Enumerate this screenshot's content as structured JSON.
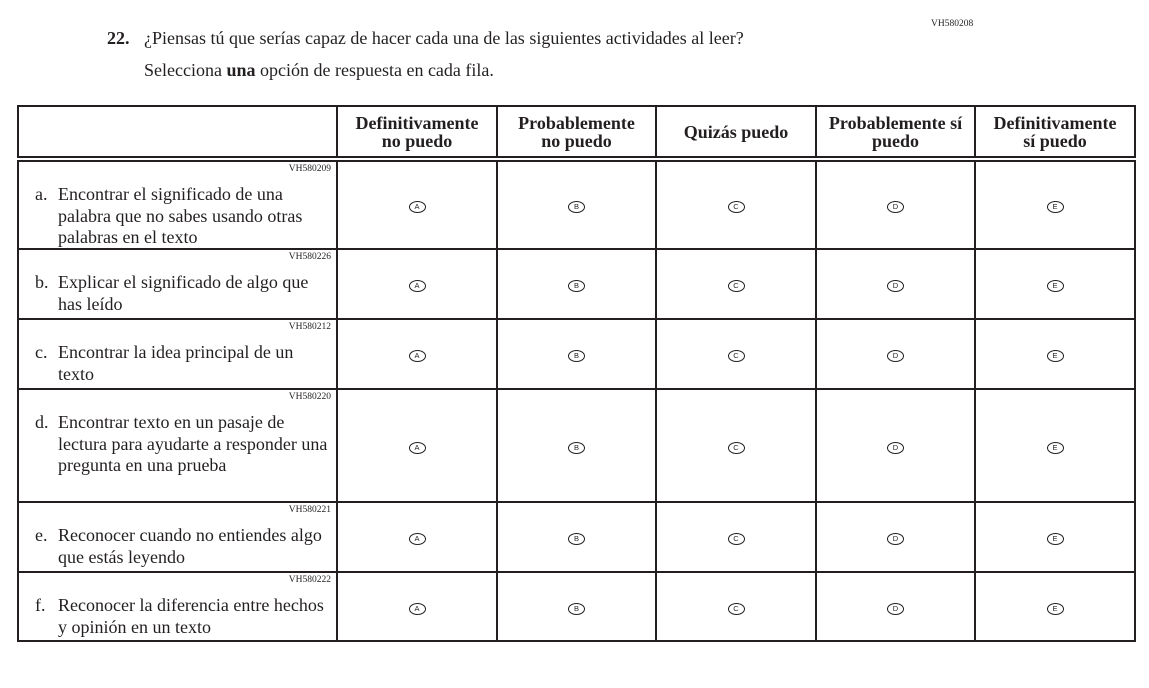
{
  "question": {
    "number": "22.",
    "code": "VH580208",
    "text": "¿Piensas tú que serías capaz de hacer cada una de las siguientes actividades al leer?",
    "instruction_pre": "Selecciona ",
    "instruction_bold": "una",
    "instruction_post": " opción de respuesta en cada fila."
  },
  "columns": [
    {
      "line1": "Definitivamente",
      "line2": "no puedo",
      "bubble": "A"
    },
    {
      "line1": "Probablemente",
      "line2": "no puedo",
      "bubble": "B"
    },
    {
      "line1": "Quizás puedo",
      "line2": "",
      "bubble": "C"
    },
    {
      "line1": "Probablemente sí",
      "line2": "puedo",
      "bubble": "D"
    },
    {
      "line1": "Definitivamente",
      "line2": "sí puedo",
      "bubble": "E"
    }
  ],
  "rows": [
    {
      "code": "VH580209",
      "letter": "a.",
      "text": "Encontrar el significado de una palabra que no sabes usando otras palabras en el texto"
    },
    {
      "code": "VH580226",
      "letter": "b.",
      "text": "Explicar el significado de algo que has leído"
    },
    {
      "code": "VH580212",
      "letter": "c.",
      "text": "Encontrar la idea principal de un texto"
    },
    {
      "code": "VH580220",
      "letter": "d.",
      "text": "Encontrar texto en un pasaje de lectura para ayudarte a responder una pregunta en una prueba"
    },
    {
      "code": "VH580221",
      "letter": "e.",
      "text": "Reconocer cuando no entiendes algo que estás leyendo"
    },
    {
      "code": "VH580222",
      "letter": "f.",
      "text": "Reconocer la diferencia entre hechos y opinión en un texto"
    }
  ]
}
